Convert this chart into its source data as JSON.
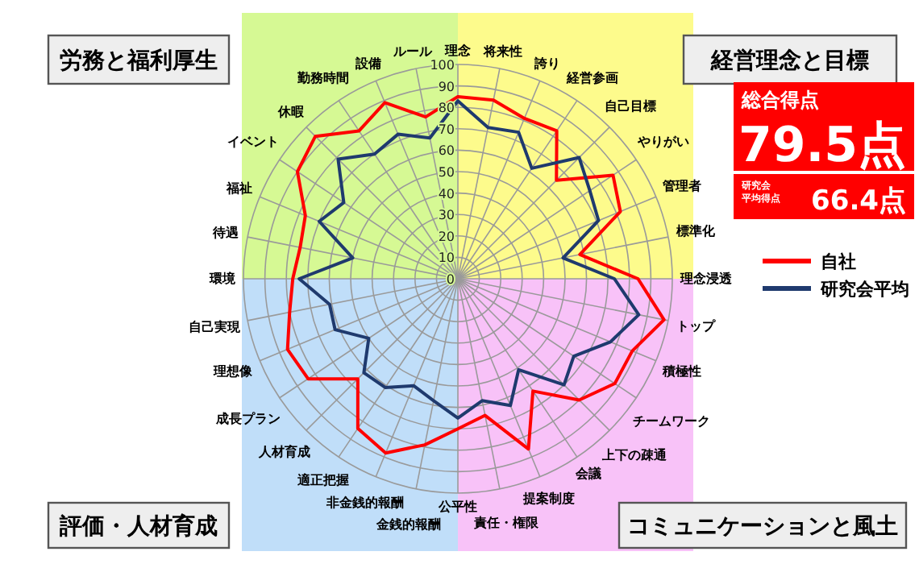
{
  "chart_data": {
    "type": "radar",
    "categories": [
      "理念",
      "将来性",
      "誇り",
      "経営参画",
      "自己目標",
      "やりがい",
      "管理者",
      "標準化",
      "理念浸透",
      "トップ",
      "積極性",
      "チームワーク",
      "上下の疎通",
      "会議",
      "提案制度",
      "責任・権限",
      "公平性",
      "金銭的報酬",
      "非金銭的報酬",
      "適正把握",
      "人材育成",
      "成長プラン",
      "理想像",
      "自己実現",
      "環境",
      "待遇",
      "福祉",
      "イベント",
      "休暇",
      "勤務時間",
      "設備",
      "ルール"
    ],
    "series": [
      {
        "name": "自社",
        "color": "#ff0000",
        "values": [
          85,
          85,
          81,
          83,
          65,
          87,
          82,
          58,
          84,
          98,
          88,
          88,
          80,
          63,
          86,
          65,
          70,
          79,
          88,
          84,
          66,
          84,
          86,
          80,
          77,
          75,
          77,
          90,
          94,
          83,
          89,
          77
        ]
      },
      {
        "name": "研究会平均",
        "color": "#1f3a6e",
        "values": [
          83,
          72,
          74,
          62,
          80,
          74,
          71,
          50,
          73,
          86,
          77,
          65,
          70,
          51,
          64,
          58,
          65,
          58,
          54,
          61,
          62,
          50,
          62,
          61,
          74,
          50,
          70,
          64,
          79,
          70,
          73,
          67
        ]
      }
    ],
    "ylim": [
      0,
      100
    ],
    "yticks": [
      0,
      10,
      20,
      30,
      40,
      50,
      60,
      70,
      80,
      90,
      100
    ],
    "grid": true,
    "legend": "right",
    "annotations": [
      "労務と福利厚生",
      "経営理念と目標",
      "評価・人材育成",
      "コミュニケーションと風土",
      "総合得点",
      "79.5点",
      "研究会平均得点",
      "66.4点"
    ]
  }
}
